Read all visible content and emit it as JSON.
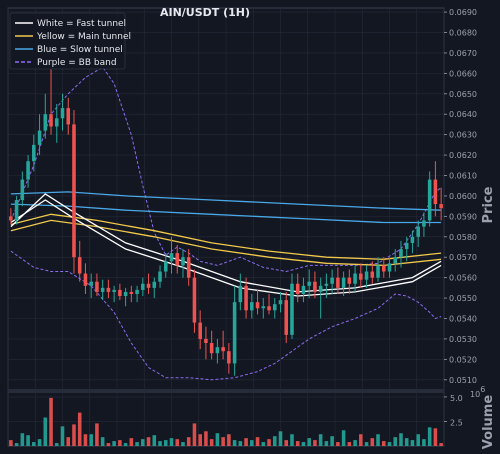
{
  "chart_data": {
    "type": "candlestick",
    "title": "AIN/USDT (1H)",
    "ylabel_price": "Price",
    "ylabel_volume": "Volume",
    "volume_exponent": "1e6",
    "volume_exponent_label": "6",
    "price_ylim": [
      0.0505,
      0.0692
    ],
    "price_ticks": [
      "0.0510",
      "0.0520",
      "0.0530",
      "0.0540",
      "0.0550",
      "0.0560",
      "0.0570",
      "0.0580",
      "0.0590",
      "0.0600",
      "0.0610",
      "0.0620",
      "0.0630",
      "0.0640",
      "0.0650",
      "0.0660",
      "0.0670",
      "0.0680",
      "0.0690"
    ],
    "volume_ylim": [
      0,
      5.5
    ],
    "volume_ticks": [
      "2.5",
      "5.0"
    ],
    "grid": true,
    "legend_position": "top-left",
    "legend": [
      {
        "label": "White = Fast tunnel",
        "color": "#ffffff",
        "dash": false
      },
      {
        "label": "Yellow = Main tunnel",
        "color": "#f2c94c",
        "dash": false
      },
      {
        "label": "Blue = Slow tunnel",
        "color": "#4aa8e8",
        "dash": false
      },
      {
        "label": "Purple = BB band",
        "color": "#8c6cf0",
        "dash": true
      }
    ],
    "colors": {
      "up": "#26a69a",
      "down": "#ef5350",
      "background": "#131722",
      "grid": "#262b38"
    },
    "candles": [
      [
        0.059,
        0.0594,
        0.0586,
        0.0588
      ],
      [
        0.0588,
        0.06,
        0.0586,
        0.0598
      ],
      [
        0.0598,
        0.0612,
        0.0595,
        0.0608
      ],
      [
        0.0608,
        0.062,
        0.0604,
        0.0617
      ],
      [
        0.0617,
        0.063,
        0.0612,
        0.0625
      ],
      [
        0.0625,
        0.064,
        0.062,
        0.0632
      ],
      [
        0.0632,
        0.065,
        0.0628,
        0.064
      ],
      [
        0.064,
        0.0662,
        0.063,
        0.0634
      ],
      [
        0.0634,
        0.0645,
        0.0626,
        0.0638
      ],
      [
        0.0638,
        0.065,
        0.0632,
        0.0643
      ],
      [
        0.0643,
        0.0648,
        0.063,
        0.0635
      ],
      [
        0.0635,
        0.0642,
        0.0562,
        0.057
      ],
      [
        0.057,
        0.0578,
        0.0558,
        0.0562
      ],
      [
        0.0562,
        0.0567,
        0.0552,
        0.0556
      ],
      [
        0.0556,
        0.0562,
        0.055,
        0.0558
      ],
      [
        0.0558,
        0.0562,
        0.0551,
        0.0553
      ],
      [
        0.0553,
        0.0559,
        0.0549,
        0.0555
      ],
      [
        0.0555,
        0.0559,
        0.055,
        0.0553
      ],
      [
        0.0553,
        0.0556,
        0.0548,
        0.0554
      ],
      [
        0.0554,
        0.0557,
        0.0549,
        0.0551
      ],
      [
        0.0551,
        0.0555,
        0.0546,
        0.0553
      ],
      [
        0.0553,
        0.0556,
        0.0548,
        0.0552
      ],
      [
        0.0552,
        0.0556,
        0.0548,
        0.0554
      ],
      [
        0.0554,
        0.056,
        0.0551,
        0.0557
      ],
      [
        0.0557,
        0.0562,
        0.0552,
        0.0555
      ],
      [
        0.0555,
        0.056,
        0.055,
        0.0558
      ],
      [
        0.0558,
        0.0566,
        0.0555,
        0.0563
      ],
      [
        0.0563,
        0.0572,
        0.056,
        0.0568
      ],
      [
        0.0568,
        0.058,
        0.0562,
        0.0572
      ],
      [
        0.0572,
        0.0576,
        0.0562,
        0.0566
      ],
      [
        0.0566,
        0.0574,
        0.056,
        0.057
      ],
      [
        0.057,
        0.0574,
        0.0556,
        0.056
      ],
      [
        0.056,
        0.0564,
        0.0533,
        0.0538
      ],
      [
        0.0538,
        0.0544,
        0.0525,
        0.053
      ],
      [
        0.053,
        0.0536,
        0.052,
        0.0528
      ],
      [
        0.0528,
        0.0534,
        0.052,
        0.0523
      ],
      [
        0.0523,
        0.053,
        0.0518,
        0.0526
      ],
      [
        0.0526,
        0.0534,
        0.052,
        0.0524
      ],
      [
        0.0524,
        0.0528,
        0.0513,
        0.0518
      ],
      [
        0.0518,
        0.0556,
        0.0512,
        0.0548
      ],
      [
        0.0548,
        0.0562,
        0.0544,
        0.0556
      ],
      [
        0.0556,
        0.056,
        0.054,
        0.0544
      ],
      [
        0.0544,
        0.0552,
        0.054,
        0.0548
      ],
      [
        0.0548,
        0.0554,
        0.0542,
        0.0545
      ],
      [
        0.0545,
        0.055,
        0.054,
        0.0546
      ],
      [
        0.0546,
        0.0552,
        0.0542,
        0.0544
      ],
      [
        0.0544,
        0.055,
        0.054,
        0.0547
      ],
      [
        0.0547,
        0.0553,
        0.0543,
        0.0549
      ],
      [
        0.0549,
        0.0553,
        0.0528,
        0.0532
      ],
      [
        0.0532,
        0.0562,
        0.053,
        0.0557
      ],
      [
        0.0557,
        0.0562,
        0.0548,
        0.0552
      ],
      [
        0.0552,
        0.056,
        0.0548,
        0.0556
      ],
      [
        0.0556,
        0.0564,
        0.055,
        0.0558
      ],
      [
        0.0558,
        0.0563,
        0.055,
        0.0553
      ],
      [
        0.0553,
        0.056,
        0.054,
        0.0556
      ],
      [
        0.0556,
        0.0562,
        0.055,
        0.0557
      ],
      [
        0.0557,
        0.0564,
        0.0552,
        0.056
      ],
      [
        0.056,
        0.0565,
        0.0552,
        0.0555
      ],
      [
        0.0555,
        0.0563,
        0.0551,
        0.056
      ],
      [
        0.056,
        0.0564,
        0.0552,
        0.0557
      ],
      [
        0.0557,
        0.0566,
        0.0553,
        0.0562
      ],
      [
        0.0562,
        0.0567,
        0.0555,
        0.0559
      ],
      [
        0.0559,
        0.0566,
        0.0555,
        0.0563
      ],
      [
        0.0563,
        0.0568,
        0.0557,
        0.056
      ],
      [
        0.056,
        0.057,
        0.0558,
        0.0566
      ],
      [
        0.0566,
        0.057,
        0.056,
        0.0563
      ],
      [
        0.0563,
        0.057,
        0.056,
        0.0567
      ],
      [
        0.0567,
        0.0574,
        0.0563,
        0.057
      ],
      [
        0.057,
        0.0578,
        0.0565,
        0.0574
      ],
      [
        0.0574,
        0.058,
        0.0568,
        0.0577
      ],
      [
        0.0577,
        0.0583,
        0.0572,
        0.058
      ],
      [
        0.058,
        0.0588,
        0.0575,
        0.0585
      ],
      [
        0.0585,
        0.0592,
        0.058,
        0.0588
      ],
      [
        0.0588,
        0.0612,
        0.0585,
        0.0608
      ],
      [
        0.0608,
        0.0617,
        0.059,
        0.0596
      ],
      [
        0.0596,
        0.0604,
        0.0588,
        0.0594
      ]
    ],
    "volumes": [
      0.6,
      0.3,
      1.3,
      1.1,
      0.4,
      0.7,
      2.9,
      4.9,
      0.3,
      2.0,
      0.9,
      2.2,
      3.4,
      1.2,
      1.2,
      2.3,
      0.9,
      0.3,
      0.5,
      0.6,
      0.3,
      0.8,
      0.4,
      0.7,
      0.9,
      1.1,
      0.5,
      0.6,
      0.8,
      0.7,
      0.4,
      0.9,
      2.3,
      1.2,
      1.5,
      0.7,
      1.3,
      0.9,
      1.2,
      0.6,
      0.5,
      0.8,
      0.6,
      0.9,
      0.4,
      0.7,
      1.0,
      1.5,
      0.6,
      1.2,
      0.5,
      0.4,
      0.8,
      0.6,
      1.2,
      0.5,
      1.0,
      0.4,
      1.6,
      0.4,
      0.6,
      1.2,
      0.4,
      0.8,
      1.2,
      0.5,
      0.4,
      0.9,
      1.3,
      0.8,
      0.6,
      1.2,
      0.7,
      1.9,
      1.8,
      0.3
    ],
    "tunnels": {
      "fast": {
        "color": "#ffffff",
        "line1": [
          [
            0,
            0.0585
          ],
          [
            6,
            0.0601
          ],
          [
            11,
            0.0592
          ],
          [
            20,
            0.0577
          ],
          [
            30,
            0.0568
          ],
          [
            40,
            0.0558
          ],
          [
            50,
            0.0553
          ],
          [
            60,
            0.0555
          ],
          [
            70,
            0.056
          ],
          [
            75,
            0.0568
          ]
        ],
        "line2": [
          [
            0,
            0.0587
          ],
          [
            6,
            0.0598
          ],
          [
            11,
            0.0589
          ],
          [
            20,
            0.0574
          ],
          [
            30,
            0.0565
          ],
          [
            40,
            0.0555
          ],
          [
            50,
            0.0551
          ],
          [
            60,
            0.0553
          ],
          [
            70,
            0.0558
          ],
          [
            75,
            0.0566
          ]
        ]
      },
      "main": {
        "color": "#f2c94c",
        "line1": [
          [
            0,
            0.0586
          ],
          [
            7,
            0.0591
          ],
          [
            15,
            0.0588
          ],
          [
            25,
            0.0583
          ],
          [
            35,
            0.0577
          ],
          [
            45,
            0.0573
          ],
          [
            55,
            0.057
          ],
          [
            65,
            0.0569
          ],
          [
            75,
            0.0572
          ]
        ],
        "line2": [
          [
            0,
            0.0583
          ],
          [
            7,
            0.0588
          ],
          [
            15,
            0.0585
          ],
          [
            25,
            0.058
          ],
          [
            35,
            0.0574
          ],
          [
            45,
            0.057
          ],
          [
            55,
            0.0567
          ],
          [
            65,
            0.0566
          ],
          [
            75,
            0.0569
          ]
        ]
      },
      "slow": {
        "color": "#4aa8e8",
        "line1": [
          [
            0,
            0.0601
          ],
          [
            10,
            0.0602
          ],
          [
            20,
            0.06
          ],
          [
            35,
            0.0598
          ],
          [
            50,
            0.0596
          ],
          [
            65,
            0.0594
          ],
          [
            75,
            0.0593
          ]
        ],
        "line2": [
          [
            0,
            0.0596
          ],
          [
            10,
            0.0595
          ],
          [
            20,
            0.0593
          ],
          [
            35,
            0.0591
          ],
          [
            50,
            0.0589
          ],
          [
            65,
            0.0587
          ],
          [
            75,
            0.0587
          ]
        ]
      }
    },
    "bollinger": {
      "color": "#8c6cf0",
      "upper": [
        [
          0,
          0.0588
        ],
        [
          4,
          0.0615
        ],
        [
          7,
          0.064
        ],
        [
          10,
          0.065
        ],
        [
          13,
          0.0658
        ],
        [
          16,
          0.0663
        ],
        [
          18,
          0.0655
        ],
        [
          21,
          0.063
        ],
        [
          23,
          0.0605
        ],
        [
          25,
          0.0582
        ],
        [
          27,
          0.0571
        ],
        [
          29,
          0.0575
        ],
        [
          31,
          0.0572
        ],
        [
          33,
          0.0568
        ],
        [
          36,
          0.0566
        ],
        [
          40,
          0.057
        ],
        [
          44,
          0.0565
        ],
        [
          48,
          0.0563
        ],
        [
          52,
          0.0566
        ],
        [
          56,
          0.0566
        ],
        [
          60,
          0.0566
        ],
        [
          64,
          0.0567
        ],
        [
          68,
          0.0574
        ],
        [
          71,
          0.0586
        ],
        [
          74,
          0.0602
        ],
        [
          75,
          0.0604
        ]
      ],
      "lower": [
        [
          0,
          0.0573
        ],
        [
          4,
          0.0565
        ],
        [
          7,
          0.0563
        ],
        [
          10,
          0.0563
        ],
        [
          14,
          0.0556
        ],
        [
          18,
          0.0543
        ],
        [
          21,
          0.0528
        ],
        [
          24,
          0.0516
        ],
        [
          27,
          0.0511
        ],
        [
          31,
          0.0511
        ],
        [
          35,
          0.051
        ],
        [
          39,
          0.0511
        ],
        [
          43,
          0.0514
        ],
        [
          46,
          0.0518
        ],
        [
          49,
          0.0524
        ],
        [
          52,
          0.053
        ],
        [
          56,
          0.0536
        ],
        [
          60,
          0.054
        ],
        [
          64,
          0.0545
        ],
        [
          67,
          0.0552
        ],
        [
          69,
          0.0551
        ],
        [
          71,
          0.0548
        ],
        [
          73,
          0.0543
        ],
        [
          74,
          0.054
        ],
        [
          75,
          0.0541
        ]
      ]
    }
  }
}
